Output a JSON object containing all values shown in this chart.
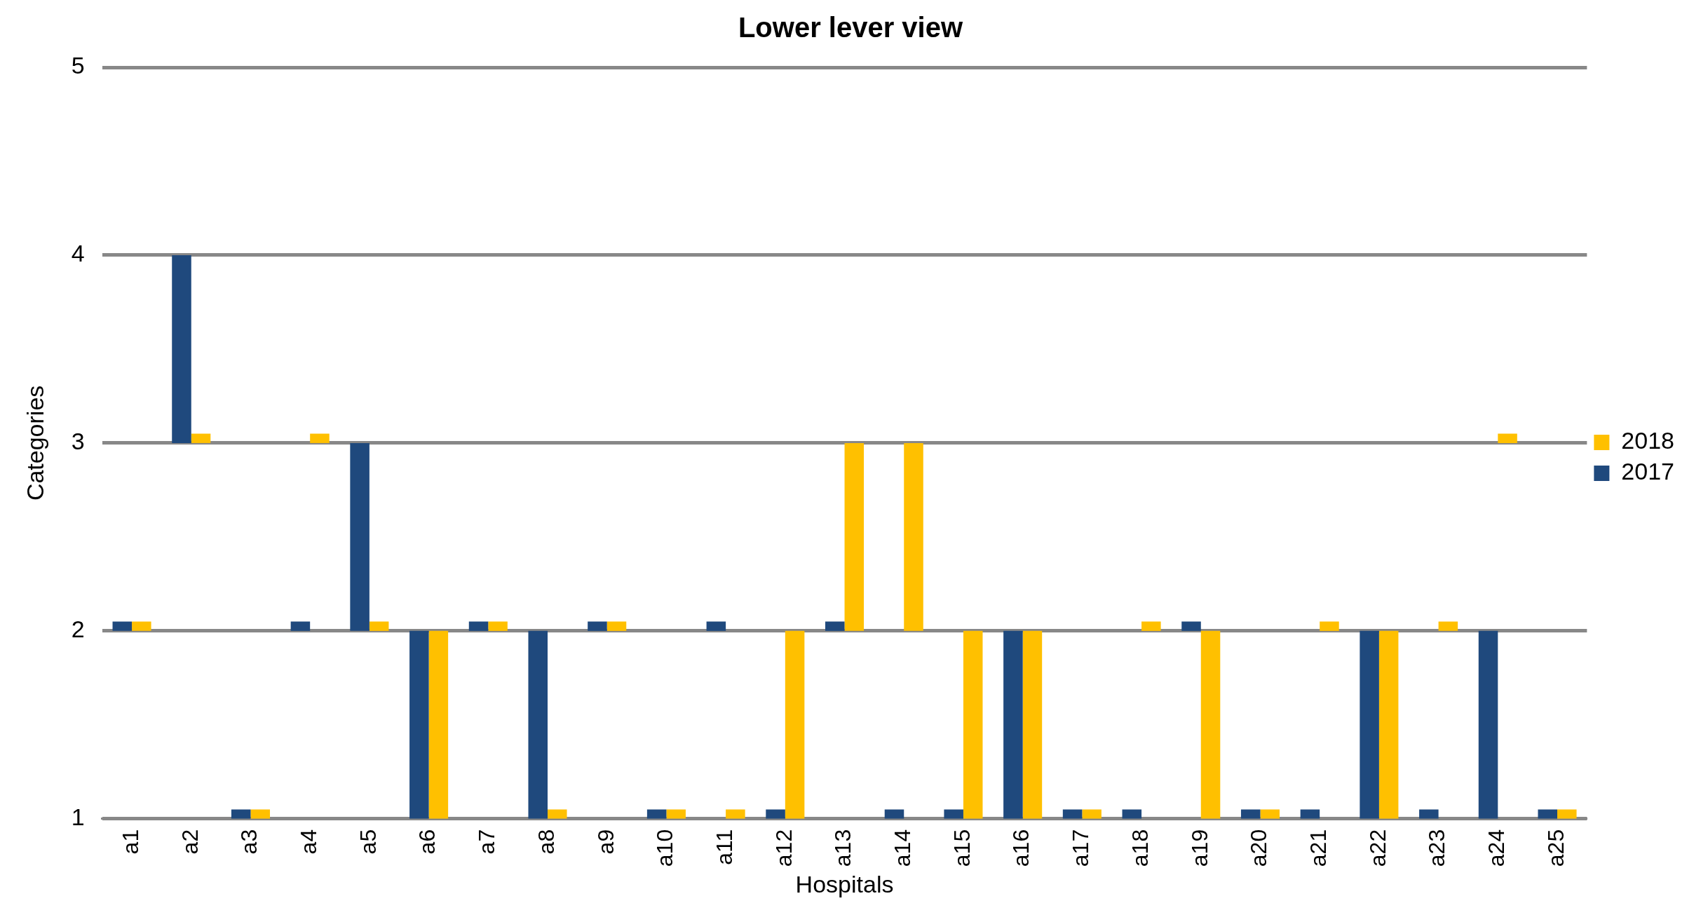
{
  "chart_data": {
    "type": "bar",
    "title": "Lower lever view",
    "xlabel": "Hospitals",
    "ylabel": "Categories",
    "categories": [
      "a1",
      "a2",
      "a3",
      "a4",
      "a5",
      "a6",
      "a7",
      "a8",
      "a9",
      "a10",
      "a11",
      "a12",
      "a13",
      "a14",
      "a15",
      "a16",
      "a17",
      "a18",
      "a19",
      "a20",
      "a21",
      "a22",
      "a23",
      "a24",
      "a25"
    ],
    "series": [
      {
        "name": "2017",
        "color": "#1f497d",
        "base": [
          2,
          3,
          1,
          2,
          2,
          1,
          2,
          1,
          2,
          1,
          2,
          1,
          2,
          1,
          1,
          1,
          1,
          1,
          2,
          1,
          1,
          1,
          1,
          1,
          1
        ],
        "values": [
          0.05,
          1,
          0.05,
          0.05,
          1,
          1,
          0.05,
          1,
          0.05,
          0.05,
          0.05,
          0.05,
          0.05,
          0.05,
          0.05,
          1,
          0.05,
          0.05,
          0.05,
          0.05,
          0.05,
          1,
          0.05,
          1,
          0.05
        ]
      },
      {
        "name": "2018",
        "color": "#ffc000",
        "base": [
          2,
          3,
          1,
          3,
          2,
          1,
          2,
          1,
          2,
          1,
          1,
          1,
          2,
          2,
          1,
          1,
          1,
          2,
          1,
          1,
          2,
          1,
          2,
          3,
          1
        ],
        "values": [
          0.05,
          0.05,
          0.05,
          0.05,
          0.05,
          1,
          0.05,
          0.05,
          0.05,
          0.05,
          0.05,
          1,
          1,
          1,
          1,
          1,
          0.05,
          0.05,
          1,
          0.05,
          0.05,
          1,
          0.05,
          0.05,
          0.05
        ]
      }
    ],
    "ylim": [
      1,
      5
    ],
    "yticks": [
      1,
      2,
      3,
      4,
      5
    ],
    "grid": "y",
    "legend": "right"
  }
}
